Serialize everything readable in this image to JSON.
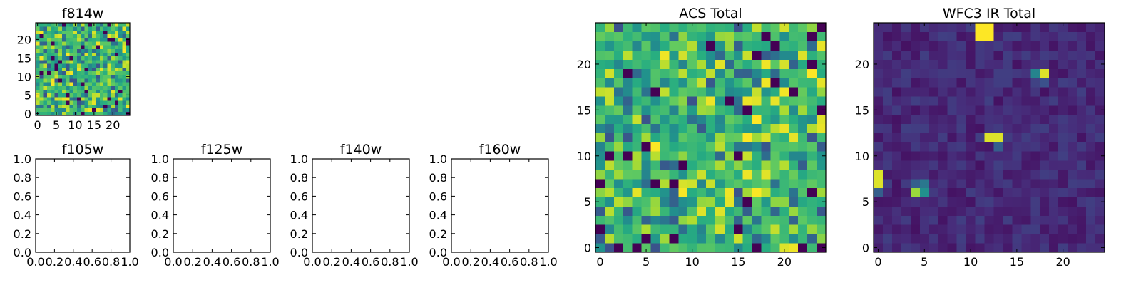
{
  "colors": {
    "viridis": [
      "#440154",
      "#472c7a",
      "#3b518b",
      "#2c718e",
      "#21908d",
      "#27ad81",
      "#5cc863",
      "#aadc32",
      "#fde725"
    ],
    "frame": "#000000",
    "background": "#ffffff"
  },
  "chart_data": [
    {
      "id": "f814w",
      "type": "heatmap",
      "title": "f814w",
      "xlim": [
        -0.5,
        24.5
      ],
      "ylim": [
        -0.5,
        24.5
      ],
      "xticks": [
        0,
        5,
        10,
        15,
        20
      ],
      "yticks": [
        0,
        5,
        10,
        15,
        20
      ],
      "rows": 25,
      "cols": 25,
      "generator": "noise-mid",
      "seed": 17,
      "description_values": "random field, mostly green/yellow (0.4-0.9), scattered dark pixels"
    },
    {
      "id": "f105w",
      "type": "empty",
      "title": "f105w",
      "xlim": [
        0.0,
        1.0
      ],
      "ylim": [
        0.0,
        1.0
      ],
      "xticks": [
        "0.0",
        "0.2",
        "0.4",
        "0.6",
        "0.8",
        "1.0"
      ],
      "yticks": [
        "0.0",
        "0.2",
        "0.4",
        "0.6",
        "0.8",
        "1.0"
      ]
    },
    {
      "id": "f125w",
      "type": "empty",
      "title": "f125w",
      "xlim": [
        0.0,
        1.0
      ],
      "ylim": [
        0.0,
        1.0
      ],
      "xticks": [
        "0.0",
        "0.2",
        "0.4",
        "0.6",
        "0.8",
        "1.0"
      ],
      "yticks": [
        "0.0",
        "0.2",
        "0.4",
        "0.6",
        "0.8",
        "1.0"
      ]
    },
    {
      "id": "f140w",
      "type": "empty",
      "title": "f140w",
      "xlim": [
        0.0,
        1.0
      ],
      "ylim": [
        0.0,
        1.0
      ],
      "xticks": [
        "0.0",
        "0.2",
        "0.4",
        "0.6",
        "0.8",
        "1.0"
      ],
      "yticks": [
        "0.0",
        "0.2",
        "0.4",
        "0.6",
        "0.8",
        "1.0"
      ]
    },
    {
      "id": "f160w",
      "type": "empty",
      "title": "f160w",
      "xlim": [
        0.0,
        1.0
      ],
      "ylim": [
        0.0,
        1.0
      ],
      "xticks": [
        "0.0",
        "0.2",
        "0.4",
        "0.6",
        "0.8",
        "1.0"
      ],
      "yticks": [
        "0.0",
        "0.2",
        "0.4",
        "0.6",
        "0.8",
        "1.0"
      ]
    },
    {
      "id": "acs_total",
      "type": "heatmap",
      "title": "ACS Total",
      "xlim": [
        -0.5,
        24.5
      ],
      "ylim": [
        -0.5,
        24.5
      ],
      "xticks": [
        0,
        5,
        10,
        15,
        20
      ],
      "yticks": [
        0,
        5,
        10,
        15,
        20
      ],
      "rows": 25,
      "cols": 25,
      "generator": "noise-mid",
      "seed": 91
    },
    {
      "id": "wfc3_ir_total",
      "type": "heatmap",
      "title": "WFC3 IR Total",
      "xlim": [
        -0.5,
        24.5
      ],
      "ylim": [
        -0.5,
        24.5
      ],
      "xticks": [
        0,
        5,
        10,
        15,
        20
      ],
      "yticks": [
        0,
        5,
        10,
        15,
        20
      ],
      "rows": 25,
      "cols": 25,
      "generator": "background-low",
      "seed": 5,
      "hotspots": [
        {
          "x": 11,
          "y": 24,
          "v": 1.0
        },
        {
          "x": 12,
          "y": 24,
          "v": 1.0
        },
        {
          "x": 11,
          "y": 23,
          "v": 1.0
        },
        {
          "x": 12,
          "y": 23,
          "v": 1.0
        },
        {
          "x": 17,
          "y": 19,
          "v": 0.45
        },
        {
          "x": 18,
          "y": 19,
          "v": 0.95
        },
        {
          "x": 17,
          "y": 18,
          "v": 0.2
        },
        {
          "x": 18,
          "y": 18,
          "v": 0.25
        },
        {
          "x": 12,
          "y": 12,
          "v": 0.95
        },
        {
          "x": 13,
          "y": 12,
          "v": 0.95
        },
        {
          "x": 13,
          "y": 11,
          "v": 0.3
        },
        {
          "x": 0,
          "y": 8,
          "v": 0.95
        },
        {
          "x": 0,
          "y": 7,
          "v": 0.95
        },
        {
          "x": 0,
          "y": 6,
          "v": 0.3
        },
        {
          "x": 4,
          "y": 6,
          "v": 0.85
        },
        {
          "x": 5,
          "y": 6,
          "v": 0.5
        },
        {
          "x": 4,
          "y": 7,
          "v": 0.3
        },
        {
          "x": 5,
          "y": 7,
          "v": 0.4
        }
      ]
    }
  ]
}
